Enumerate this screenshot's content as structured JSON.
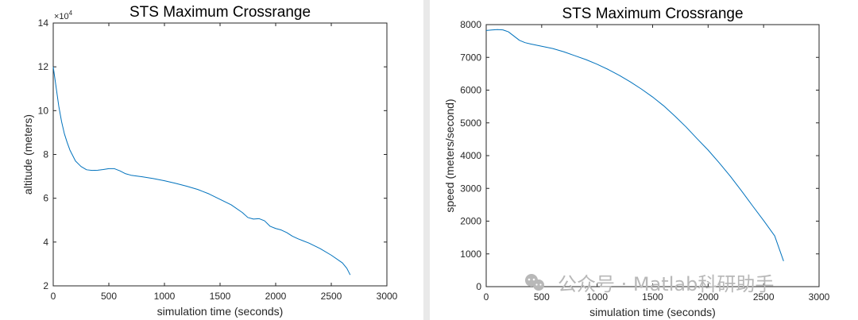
{
  "colors": {
    "line": "#0072bd",
    "axes": "#262626",
    "grid": "#d9d9d9"
  },
  "watermark": {
    "text": "公众号 · Matlab科研助手",
    "icon": "wechat-icon"
  },
  "chart_data": [
    {
      "type": "line",
      "title": "STS Maximum Crossrange",
      "xlabel": "simulation time (seconds)",
      "ylabel": "altitude (meters)",
      "exponent": "×10",
      "exponent_power": "4",
      "xlim": [
        0,
        3000
      ],
      "ylim": [
        2,
        14
      ],
      "xticks": [
        0,
        500,
        1000,
        1500,
        2000,
        2500,
        3000
      ],
      "yticks": [
        2,
        4,
        6,
        8,
        10,
        12,
        14
      ],
      "grid": true,
      "series": [
        {
          "x": [
            0,
            25,
            50,
            75,
            100,
            125,
            150,
            175,
            200,
            250,
            300,
            350,
            400,
            450,
            500,
            550,
            600,
            650,
            700,
            800,
            900,
            1000,
            1100,
            1200,
            1300,
            1400,
            1500,
            1600,
            1700,
            1750,
            1800,
            1850,
            1900,
            1950,
            2000,
            2050,
            2100,
            2150,
            2200,
            2300,
            2400,
            2500,
            2600,
            2640,
            2670
          ],
          "y": [
            12.0,
            11.1,
            10.2,
            9.5,
            8.95,
            8.55,
            8.2,
            7.95,
            7.7,
            7.45,
            7.3,
            7.27,
            7.28,
            7.31,
            7.35,
            7.35,
            7.25,
            7.12,
            7.05,
            6.98,
            6.9,
            6.8,
            6.68,
            6.55,
            6.4,
            6.2,
            5.95,
            5.7,
            5.35,
            5.12,
            5.05,
            5.07,
            4.97,
            4.72,
            4.62,
            4.55,
            4.43,
            4.27,
            4.15,
            3.95,
            3.7,
            3.4,
            3.05,
            2.8,
            2.5
          ]
        }
      ]
    },
    {
      "type": "line",
      "title": "STS Maximum Crossrange",
      "xlabel": "simulation time (seconds)",
      "ylabel": "speed (meters/second)",
      "xlim": [
        0,
        3000
      ],
      "ylim": [
        0,
        8000
      ],
      "xticks": [
        0,
        500,
        1000,
        1500,
        2000,
        2500,
        3000
      ],
      "yticks": [
        0,
        1000,
        2000,
        3000,
        4000,
        5000,
        6000,
        7000,
        8000
      ],
      "grid": true,
      "series": [
        {
          "x": [
            0,
            50,
            100,
            150,
            200,
            250,
            300,
            350,
            400,
            500,
            600,
            700,
            800,
            900,
            1000,
            1100,
            1200,
            1300,
            1400,
            1500,
            1600,
            1700,
            1800,
            1900,
            2000,
            2100,
            2200,
            2300,
            2400,
            2500,
            2600,
            2680
          ],
          "y": [
            7820,
            7835,
            7850,
            7840,
            7780,
            7650,
            7520,
            7450,
            7410,
            7340,
            7270,
            7170,
            7050,
            6930,
            6790,
            6630,
            6450,
            6250,
            6030,
            5790,
            5520,
            5210,
            4880,
            4520,
            4170,
            3780,
            3370,
            2930,
            2470,
            2020,
            1550,
            780
          ]
        }
      ]
    }
  ]
}
